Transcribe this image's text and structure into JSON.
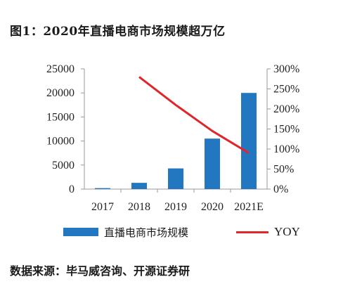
{
  "title": "图1：2020年直播电商市场规模超万亿",
  "source": "数据来源：毕马威咨询、开源证券研",
  "legend": {
    "bar_label": "直播电商市场规模",
    "line_label": "YOY"
  },
  "colors": {
    "bar": "#2277c0",
    "line": "#e0262a",
    "axis": "#999999"
  },
  "chart_data": {
    "type": "bar",
    "categories": [
      "2017",
      "2018",
      "2019",
      "2020",
      "2021E"
    ],
    "series": [
      {
        "name": "直播电商市场规模",
        "type": "bar",
        "axis": "left",
        "values": [
          200,
          1300,
          4300,
          10500,
          20000
        ]
      },
      {
        "name": "YOY",
        "type": "line",
        "axis": "right",
        "values": [
          null,
          280,
          210,
          145,
          90
        ]
      }
    ],
    "y_left": {
      "ticks": [
        "0",
        "5000",
        "10000",
        "15000",
        "20000",
        "25000"
      ],
      "range": [
        0,
        25000
      ]
    },
    "y_right": {
      "ticks": [
        "0%",
        "50%",
        "100%",
        "150%",
        "200%",
        "250%",
        "300%"
      ],
      "range": [
        0,
        300
      ]
    },
    "grid": false,
    "legend_position": "bottom"
  }
}
